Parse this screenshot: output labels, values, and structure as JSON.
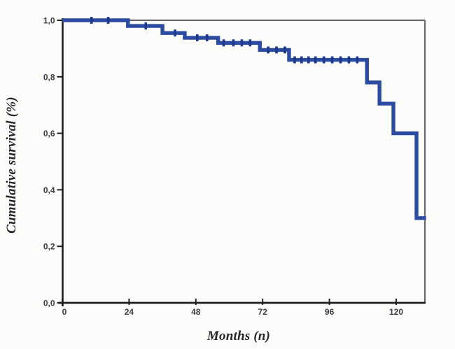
{
  "chart_data": {
    "type": "line",
    "chart_kind": "kaplan_meier_step_function",
    "title": "",
    "xlabel": "Months (n)",
    "ylabel": "Cumulative survival (%)",
    "xlim": [
      0,
      130.7
    ],
    "ylim": [
      0.0,
      1.0
    ],
    "x_tick_values": [
      0,
      24,
      48,
      72,
      96,
      120
    ],
    "x_tick_labels": [
      "0",
      "24",
      "48",
      "72",
      "96",
      "120"
    ],
    "y_tick_values": [
      0.0,
      0.2,
      0.4,
      0.6,
      0.8,
      1.0
    ],
    "y_tick_labels": [
      "0,0",
      "0,2",
      "0,4",
      "0,6",
      "0,8",
      "1,0"
    ],
    "grid": false,
    "legend": "none",
    "colors": {
      "curve": "#2b4ba1",
      "censor": "#1f3a8c",
      "frame": "#6a6a6a",
      "axis": "#1d1d1d",
      "tick_label": "#3c3c46",
      "axis_title": "#26262a",
      "background": "#fcfcfb"
    },
    "series": [
      {
        "name": "cumulative-survival",
        "steps": [
          {
            "t": 0,
            "s": 1.0
          },
          {
            "t": 23.6,
            "s": 0.98
          },
          {
            "t": 36,
            "s": 0.955
          },
          {
            "t": 44,
            "s": 0.938
          },
          {
            "t": 56,
            "s": 0.92
          },
          {
            "t": 71,
            "s": 0.895
          },
          {
            "t": 81.5,
            "s": 0.86
          },
          {
            "t": 109.5,
            "s": 0.78
          },
          {
            "t": 114,
            "s": 0.705
          },
          {
            "t": 119,
            "s": 0.6
          },
          {
            "t": 127.3,
            "s": 0.3
          }
        ],
        "end_time": 130.7,
        "censor_times": [
          {
            "t": 10.5,
            "s": 1.0
          },
          {
            "t": 16.5,
            "s": 1.0
          },
          {
            "t": 30,
            "s": 0.98
          },
          {
            "t": 40.5,
            "s": 0.955
          },
          {
            "t": 48.5,
            "s": 0.938
          },
          {
            "t": 52,
            "s": 0.938
          },
          {
            "t": 58,
            "s": 0.92
          },
          {
            "t": 61.5,
            "s": 0.92
          },
          {
            "t": 64.5,
            "s": 0.92
          },
          {
            "t": 67.5,
            "s": 0.92
          },
          {
            "t": 74,
            "s": 0.895
          },
          {
            "t": 77,
            "s": 0.895
          },
          {
            "t": 80,
            "s": 0.895
          },
          {
            "t": 83.5,
            "s": 0.86
          },
          {
            "t": 86,
            "s": 0.86
          },
          {
            "t": 88.5,
            "s": 0.86
          },
          {
            "t": 91,
            "s": 0.86
          },
          {
            "t": 94,
            "s": 0.86
          },
          {
            "t": 97,
            "s": 0.86
          },
          {
            "t": 100,
            "s": 0.86
          },
          {
            "t": 103,
            "s": 0.86
          },
          {
            "t": 106,
            "s": 0.86
          }
        ]
      }
    ]
  }
}
